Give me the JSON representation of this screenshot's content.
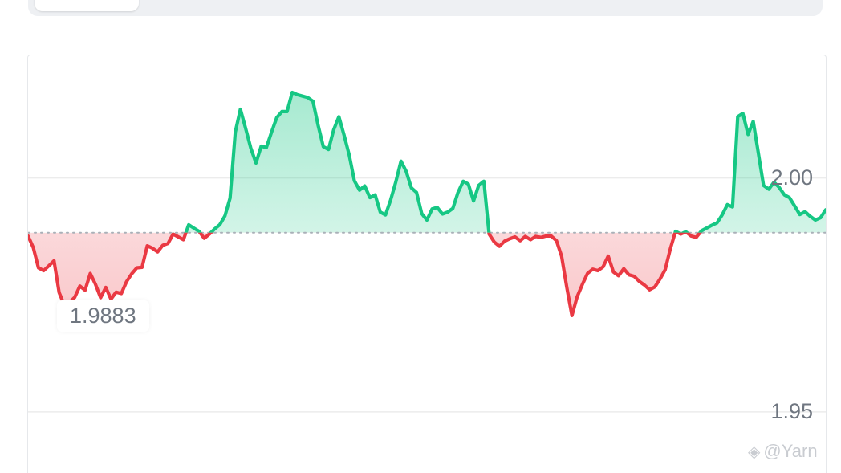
{
  "tabs": {
    "active_label": ""
  },
  "chart_data": {
    "type": "area",
    "title": "",
    "xlabel": "",
    "ylabel": "",
    "ylim": [
      1.9335,
      2.0262
    ],
    "reference_value": 1.9883,
    "reference_label": "1.9883",
    "ytick_labels": [
      "2.00",
      "1.95"
    ],
    "ytick_values": [
      2.0,
      1.95
    ],
    "grid": true,
    "colors": {
      "above": "#16c784",
      "below": "#ea3943",
      "grid": "#ececec",
      "reference": "#aab0b8"
    },
    "series": [
      {
        "values": [
          1.9876,
          1.9851,
          1.9808,
          1.9802,
          1.9812,
          1.9823,
          1.9755,
          1.9728,
          1.9734,
          1.9745,
          1.9769,
          1.976,
          1.9796,
          1.9773,
          1.9744,
          1.9766,
          1.9741,
          1.9756,
          1.9753,
          1.9778,
          1.9795,
          1.9808,
          1.9809,
          1.9855,
          1.985,
          1.9842,
          1.9856,
          1.986,
          1.988,
          1.9874,
          1.9868,
          1.99,
          1.9893,
          1.9886,
          1.9871,
          1.988,
          1.9891,
          1.99,
          1.9919,
          1.9957,
          2.0098,
          2.0147,
          2.0106,
          2.0064,
          2.0032,
          2.0068,
          2.0065,
          2.0098,
          2.0129,
          2.0142,
          2.0142,
          2.0183,
          2.0178,
          2.0175,
          2.0172,
          2.0164,
          2.0112,
          2.0067,
          2.0061,
          2.0103,
          2.0131,
          2.0092,
          2.0049,
          1.9994,
          1.9974,
          1.9983,
          1.9958,
          1.9964,
          1.9927,
          1.9921,
          1.9953,
          1.9992,
          2.0036,
          2.0014,
          1.9979,
          1.9969,
          1.9924,
          1.991,
          1.9934,
          1.9937,
          1.9923,
          1.9927,
          1.9935,
          1.9969,
          1.9993,
          1.9987,
          1.9951,
          1.9984,
          1.9993,
          1.988,
          1.9863,
          1.9854,
          1.9865,
          1.987,
          1.9874,
          1.9866,
          1.9875,
          1.9868,
          1.9875,
          1.9873,
          1.9876,
          1.9876,
          1.9866,
          1.9833,
          1.9766,
          1.9706,
          1.9746,
          1.9772,
          1.9796,
          1.9805,
          1.9802,
          1.981,
          1.9833,
          1.9799,
          1.9791,
          1.9806,
          1.9793,
          1.979,
          1.9779,
          1.9771,
          1.9761,
          1.9767,
          1.9784,
          1.9804,
          1.9849,
          1.9886,
          1.988,
          1.9885,
          1.9876,
          1.9873,
          1.9887,
          1.9893,
          1.9899,
          1.9904,
          1.9921,
          1.9943,
          1.9938,
          2.0131,
          2.0138,
          2.0093,
          2.0121,
          2.0052,
          1.9984,
          1.9976,
          1.9991,
          1.998,
          1.9964,
          1.9958,
          1.994,
          1.9922,
          1.9928,
          1.9918,
          1.991,
          1.9915,
          1.9932
        ]
      }
    ]
  },
  "watermark": {
    "icon": "binance-diamond-icon",
    "text": "@Yarn"
  }
}
